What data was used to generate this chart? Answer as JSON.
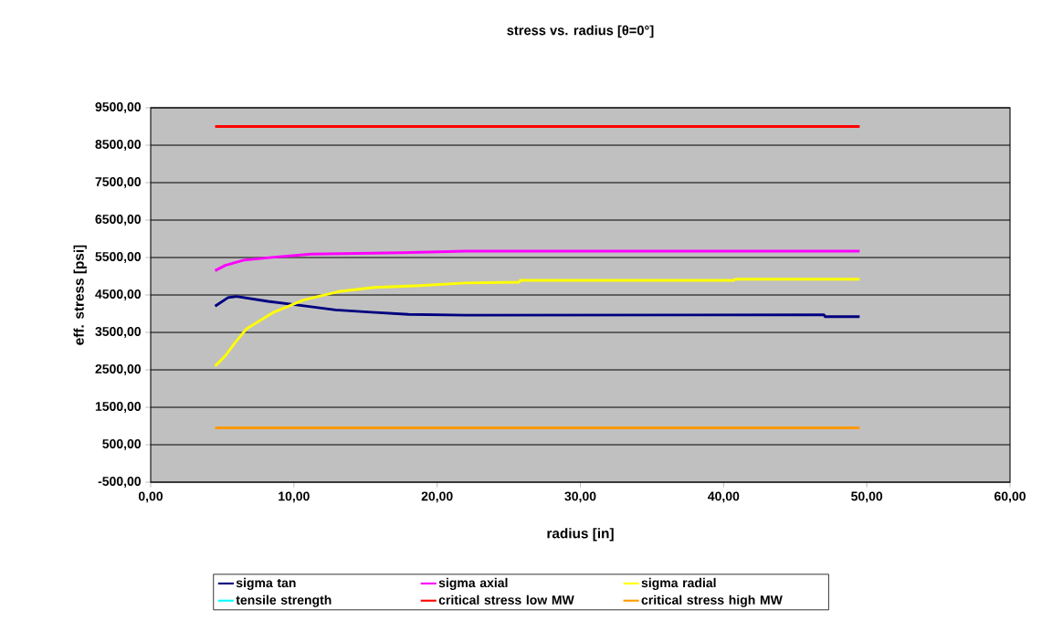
{
  "chart_data": {
    "type": "line",
    "title": "stress vs. radius [θ=0°]",
    "xlabel": "radius [in]",
    "ylabel": "eff. stress [psi]",
    "xlim": [
      0,
      60
    ],
    "ylim": [
      -500,
      9500
    ],
    "xticks": [
      {
        "value": 0,
        "label": "0,00"
      },
      {
        "value": 10,
        "label": "10,00"
      },
      {
        "value": 20,
        "label": "20,00"
      },
      {
        "value": 30,
        "label": "30,00"
      },
      {
        "value": 40,
        "label": "40,00"
      },
      {
        "value": 50,
        "label": "50,00"
      },
      {
        "value": 60,
        "label": "60,00"
      }
    ],
    "yticks": [
      {
        "value": -500,
        "label": "-500,00"
      },
      {
        "value": 500,
        "label": "500,00"
      },
      {
        "value": 1500,
        "label": "1500,00"
      },
      {
        "value": 2500,
        "label": "2500,00"
      },
      {
        "value": 3500,
        "label": "3500,00"
      },
      {
        "value": 4500,
        "label": "4500,00"
      },
      {
        "value": 5500,
        "label": "5500,00"
      },
      {
        "value": 6500,
        "label": "6500,00"
      },
      {
        "value": 7500,
        "label": "7500,00"
      },
      {
        "value": 8500,
        "label": "8500,00"
      },
      {
        "value": 9500,
        "label": "9500,00"
      }
    ],
    "grid": "y",
    "legend": "bottom",
    "marker": "none",
    "line_style": "solid",
    "series": [
      {
        "name": "sigma tan",
        "color": "#000080",
        "x": [
          4.5,
          5.4,
          6.0,
          8.2,
          10.7,
          12.9,
          15.4,
          18.0,
          22.0,
          47.0,
          47.1,
          49.5
        ],
        "values": [
          4200,
          4430,
          4460,
          4330,
          4210,
          4100,
          4040,
          3980,
          3960,
          3970,
          3920,
          3920
        ]
      },
      {
        "name": "sigma axial",
        "color": "#ff00ff",
        "x": [
          4.5,
          5.2,
          6.5,
          8.6,
          11.2,
          17.5,
          22.0,
          49.5
        ],
        "values": [
          5150,
          5290,
          5430,
          5510,
          5590,
          5630,
          5670,
          5670
        ]
      },
      {
        "name": "sigma radial",
        "color": "#ffff00",
        "x": [
          4.5,
          5.2,
          5.9,
          6.7,
          8.6,
          10.7,
          13.1,
          15.6,
          18.8,
          22.0,
          25.7,
          25.8,
          40.7,
          40.8,
          49.5
        ],
        "values": [
          2600,
          2870,
          3230,
          3600,
          4040,
          4370,
          4590,
          4700,
          4750,
          4820,
          4840,
          4890,
          4890,
          4920,
          4920
        ]
      },
      {
        "name": "tensile strength",
        "color": "#00ffff"
      },
      {
        "name": "critical stress low MW",
        "color": "#ff0000",
        "x": [
          4.5,
          49.5
        ],
        "values": [
          9000,
          9000
        ]
      },
      {
        "name": "critical stress high MW",
        "color": "#ff9900",
        "x": [
          4.5,
          49.5
        ],
        "values": [
          950,
          950
        ]
      }
    ]
  }
}
